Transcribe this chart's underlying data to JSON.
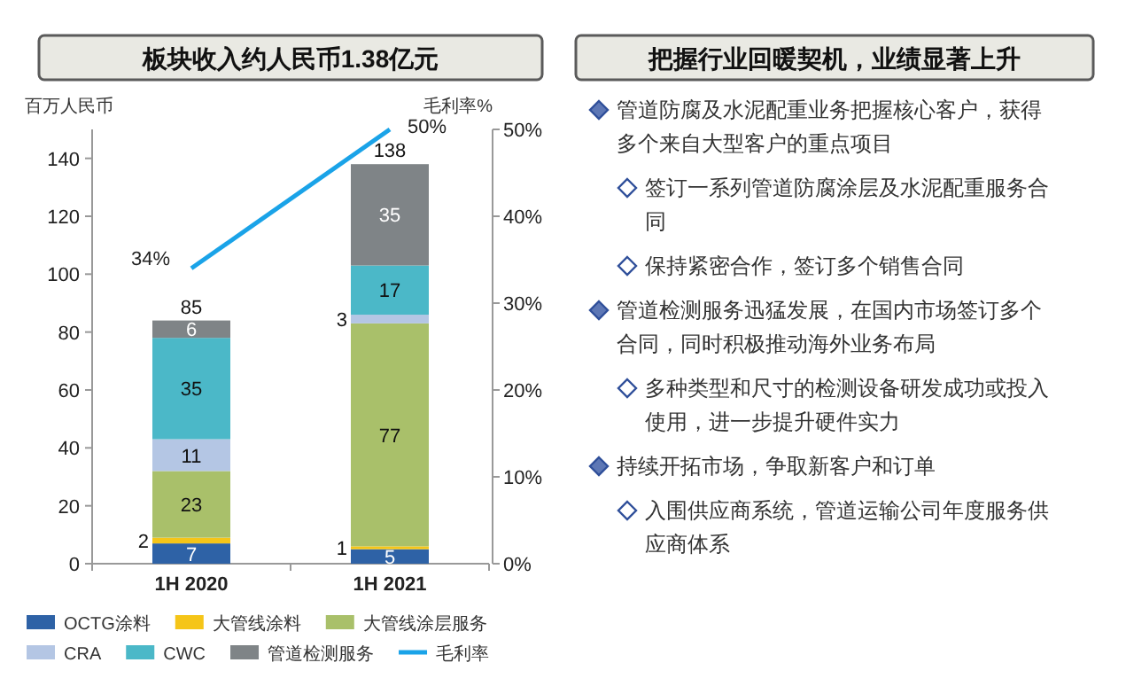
{
  "chart_data": [
    {
      "type": "bar",
      "title": "板块收入约人民币1.38亿元",
      "ylabel": "百万人民币",
      "y2label": "毛利率%",
      "categories": [
        "1H 2020",
        "1H 2021"
      ],
      "stacked": true,
      "data_labels": true,
      "totals": [
        "85",
        "138"
      ],
      "ylim": [
        0,
        150
      ],
      "yticks": [
        0,
        20,
        40,
        60,
        80,
        100,
        120,
        140
      ],
      "y2lim": [
        0,
        50
      ],
      "y2ticks": [
        {
          "value": 0,
          "label": "0%"
        },
        {
          "value": 10,
          "label": "10%"
        },
        {
          "value": 20,
          "label": "20%"
        },
        {
          "value": 30,
          "label": "30%"
        },
        {
          "value": 40,
          "label": "40%"
        },
        {
          "value": 50,
          "label": "50%"
        }
      ],
      "legend": "bottom",
      "series": [
        {
          "name": "OCTG涂料",
          "color": "#2e62a6",
          "values": [
            7,
            5
          ]
        },
        {
          "name": "大管线涂料",
          "color": "#f5c518",
          "values": [
            2,
            1
          ]
        },
        {
          "name": "大管线涂层服务",
          "color": "#a9c06a",
          "values": [
            23,
            77
          ]
        },
        {
          "name": "CRA",
          "color": "#b4c6e4",
          "values": [
            11,
            3
          ]
        },
        {
          "name": "CWC",
          "color": "#4bb8c8",
          "values": [
            35,
            17
          ]
        },
        {
          "name": "管道检测服务",
          "color": "#7f8487",
          "values": [
            6,
            35
          ]
        },
        {
          "name": "毛利率",
          "type": "line",
          "axis": "y2",
          "color": "#1aa3e8",
          "values": [
            34,
            50
          ],
          "value_labels": [
            "34%",
            "50%"
          ]
        }
      ]
    },
    {
      "type": "other",
      "title": "把握行业回暖契机，业绩显著上升",
      "annotations": [
        "管道防腐及水泥配重业务把握核心客户，获得多个来自大型客户的重点项目",
        "签订一系列管道防腐涂层及水泥配重服务合同",
        "保持紧密合作，签订多个销售合同",
        "管道检测服务迅猛发展，在国内市场签订多个合同，同时积极推动海外业务布局",
        "多种类型和尺寸的检测设备研发成功或投入使用，进一步提升硬件实力",
        "持续开拓市场，争取新客户和订单",
        "入围供应商系统，管道运输公司年度服务供应商体系"
      ]
    }
  ]
}
